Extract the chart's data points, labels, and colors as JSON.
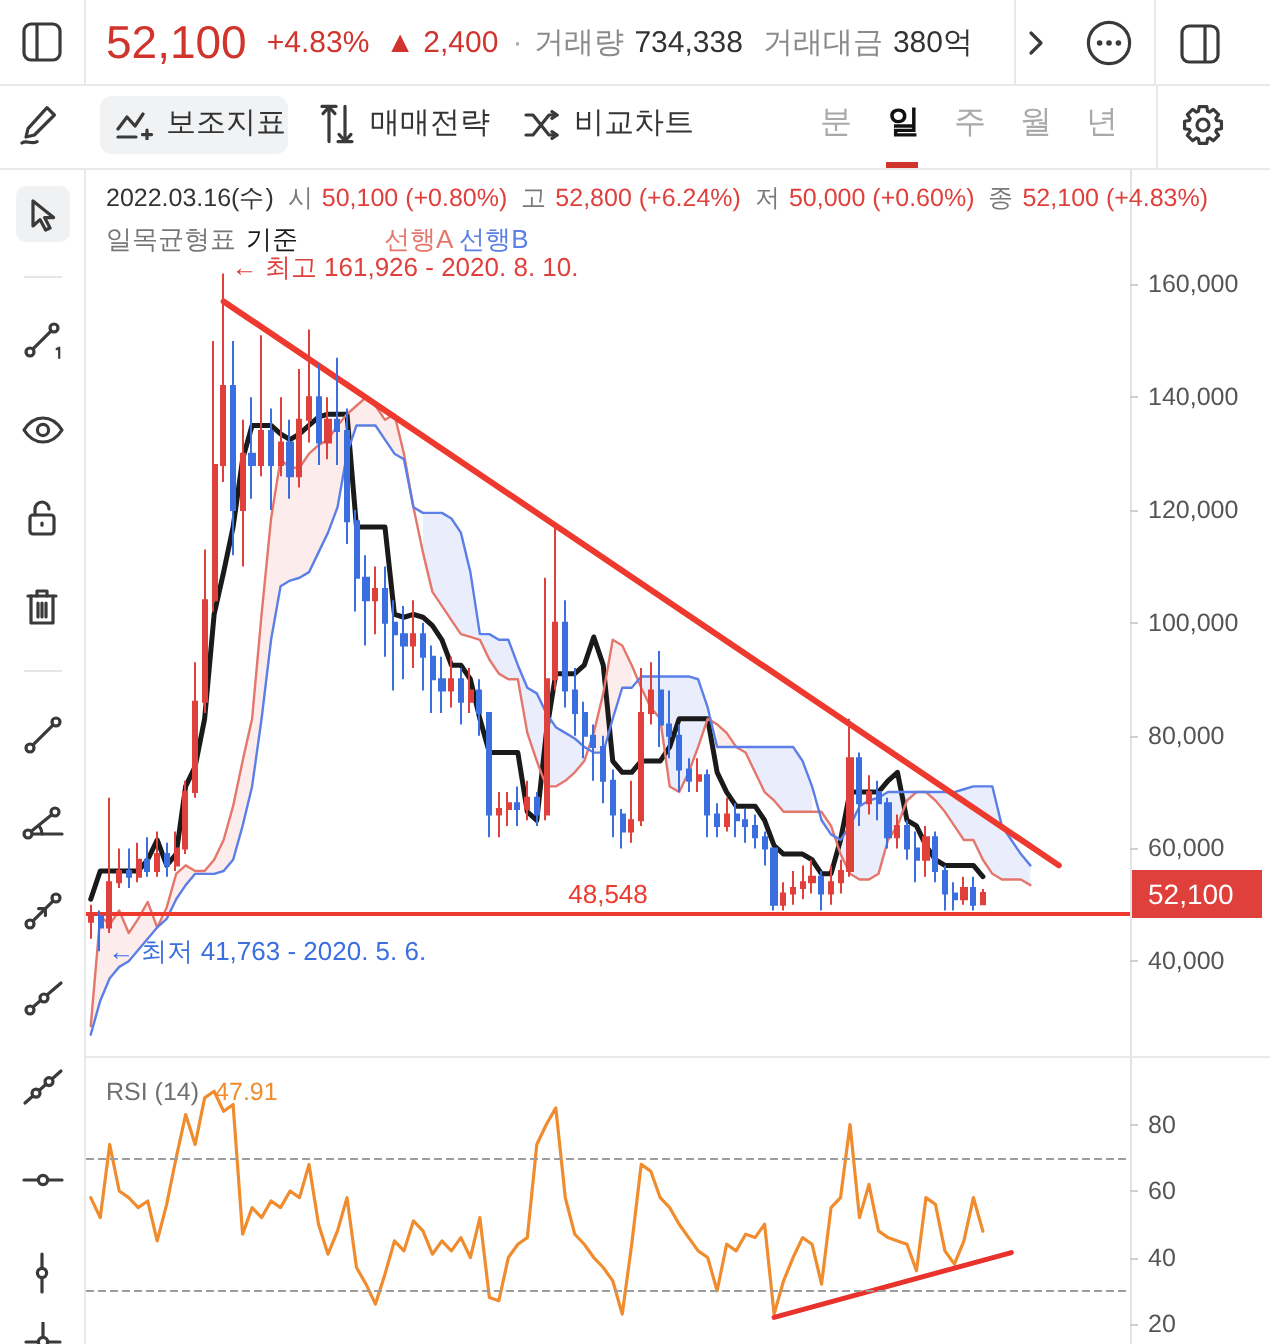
{
  "chart_data": [
    {
      "type": "other",
      "annotations": [
        "52,100",
        "+4.83%",
        "▲ 2,400",
        "·",
        "거래량",
        "734,338",
        "거래대금",
        "380억",
        "보조지표",
        "매매전략",
        "비교차트",
        "분",
        "일",
        "주",
        "월",
        "년"
      ]
    },
    {
      "type": "candlestick",
      "legend": "top left",
      "legend_title": "일목균형표",
      "annotations": [
        "2022.03.16(수)",
        "시",
        "50,100 (+0.80%)",
        "고",
        "52,800 (+6.24%)",
        "저",
        "50,000 (+0.60%)",
        "종",
        "52,100 (+4.83%)",
        "← 최고 161,926 - 2020. 8. 10.",
        "← 최저 41,763 - 2020. 5. 6.",
        "52,100"
      ],
      "categories": [
        null,
        null,
        null,
        null,
        null,
        null,
        null,
        null,
        null,
        null,
        null,
        null,
        null,
        null,
        null,
        null,
        null,
        null,
        null,
        null,
        null,
        null,
        null,
        null,
        null,
        null,
        null,
        null,
        null,
        null,
        null,
        null,
        null,
        null,
        null,
        null,
        null,
        null,
        null,
        null,
        null,
        null,
        null,
        null,
        null,
        null,
        null,
        null,
        null,
        null,
        null,
        null,
        null,
        null,
        null,
        null,
        null,
        null,
        null,
        null,
        null,
        null,
        null,
        null,
        null,
        null,
        null,
        null,
        null,
        null,
        null,
        null,
        null,
        null,
        null,
        null,
        null,
        null,
        null,
        null,
        null,
        null,
        null,
        null,
        null,
        null,
        null,
        null,
        null,
        null,
        null,
        null,
        null,
        null,
        null,
        null,
        null,
        null,
        null,
        null,
        null,
        null,
        null,
        null,
        null,
        null,
        null,
        null,
        null,
        null
      ],
      "ohlc": [
        [
          47000,
          50000,
          44000,
          48000
        ],
        [
          48000,
          49000,
          41763,
          46000
        ],
        [
          46000,
          69000,
          45000,
          54000
        ],
        [
          54000,
          60000,
          53000,
          56000
        ],
        [
          56000,
          60000,
          53000,
          55000
        ],
        [
          55000,
          61000,
          54000,
          58000
        ],
        [
          58000,
          62000,
          55000,
          56000
        ],
        [
          56000,
          63000,
          55000,
          59000
        ],
        [
          59000,
          61000,
          55000,
          57000
        ],
        [
          57000,
          63000,
          56000,
          60000
        ],
        [
          60000,
          72000,
          59000,
          70000
        ],
        [
          70000,
          93000,
          69000,
          86000
        ],
        [
          86000,
          113000,
          84000,
          104000
        ],
        [
          104000,
          150000,
          102000,
          128000
        ],
        [
          128000,
          161926,
          125000,
          142000
        ],
        [
          142000,
          150000,
          112000,
          120000
        ],
        [
          120000,
          136000,
          110000,
          130000
        ],
        [
          130000,
          140000,
          122000,
          128000
        ],
        [
          128000,
          151000,
          126000,
          134000
        ],
        [
          134000,
          138000,
          120000,
          128000
        ],
        [
          128000,
          140000,
          126000,
          132000
        ],
        [
          132000,
          136000,
          122000,
          126000
        ],
        [
          126000,
          145000,
          124000,
          136000
        ],
        [
          136000,
          152000,
          132000,
          140000
        ],
        [
          140000,
          146000,
          128000,
          132000
        ],
        [
          132000,
          140000,
          129000,
          136000
        ],
        [
          136000,
          147000,
          128000,
          134000
        ],
        [
          134000,
          138000,
          114000,
          118000
        ],
        [
          118000,
          120000,
          102000,
          108000
        ],
        [
          108000,
          112000,
          96000,
          104000
        ],
        [
          104000,
          110000,
          98000,
          106000
        ],
        [
          106000,
          110000,
          94000,
          100000
        ],
        [
          100000,
          104000,
          88000,
          98000
        ],
        [
          98000,
          103000,
          90000,
          96000
        ],
        [
          96000,
          104000,
          92000,
          98000
        ],
        [
          98000,
          100000,
          88000,
          94000
        ],
        [
          94000,
          96000,
          84000,
          90000
        ],
        [
          90000,
          94000,
          84000,
          88000
        ],
        [
          88000,
          94000,
          85000,
          90000
        ],
        [
          90000,
          92000,
          82000,
          86000
        ],
        [
          86000,
          92000,
          84000,
          88000
        ],
        [
          88000,
          90000,
          80000,
          84000
        ],
        [
          84000,
          84000,
          62000,
          66000
        ],
        [
          66000,
          70000,
          62000,
          67000
        ],
        [
          67000,
          70000,
          64000,
          68000
        ],
        [
          68000,
          71000,
          64000,
          67000
        ],
        [
          67000,
          72000,
          65000,
          69000
        ],
        [
          69000,
          70000,
          64000,
          66000
        ],
        [
          66000,
          108000,
          65000,
          90000
        ],
        [
          90000,
          117000,
          88000,
          100000
        ],
        [
          100000,
          104000,
          85000,
          88000
        ],
        [
          88000,
          92000,
          80000,
          84000
        ],
        [
          84000,
          86000,
          76000,
          80000
        ],
        [
          80000,
          82000,
          72000,
          78000
        ],
        [
          78000,
          80000,
          68000,
          72000
        ],
        [
          72000,
          74000,
          62000,
          66000
        ],
        [
          66000,
          67000,
          60000,
          63000
        ],
        [
          63000,
          72000,
          61000,
          65000
        ],
        [
          65000,
          92000,
          64000,
          84000
        ],
        [
          84000,
          93000,
          82000,
          88000
        ],
        [
          88000,
          95000,
          78000,
          82000
        ],
        [
          82000,
          88000,
          76000,
          80000
        ],
        [
          80000,
          82000,
          70000,
          74000
        ],
        [
          74000,
          76000,
          70000,
          72000
        ],
        [
          72000,
          76000,
          70000,
          73000
        ],
        [
          73000,
          74000,
          62000,
          66000
        ],
        [
          66000,
          68000,
          62000,
          64000
        ],
        [
          64000,
          69000,
          63000,
          66000
        ],
        [
          66000,
          68000,
          62000,
          65000
        ],
        [
          65000,
          67000,
          61000,
          64000
        ],
        [
          64000,
          66000,
          60000,
          62000
        ],
        [
          62000,
          63000,
          57000,
          60000
        ],
        [
          60000,
          60000,
          49000,
          50000
        ],
        [
          50000,
          54000,
          49000,
          52000
        ],
        [
          52000,
          56000,
          50000,
          53000
        ],
        [
          53000,
          57000,
          51000,
          54000
        ],
        [
          54000,
          58000,
          52000,
          55000
        ],
        [
          55000,
          56000,
          49000,
          52000
        ],
        [
          52000,
          57000,
          50000,
          54000
        ],
        [
          54000,
          58000,
          52000,
          56000
        ],
        [
          56000,
          83000,
          55000,
          76000
        ],
        [
          76000,
          77000,
          64000,
          68000
        ],
        [
          68000,
          73000,
          66000,
          70000
        ],
        [
          70000,
          72000,
          65000,
          68000
        ],
        [
          68000,
          69000,
          60000,
          62000
        ],
        [
          62000,
          66000,
          60000,
          64000
        ],
        [
          64000,
          65000,
          58000,
          60000
        ],
        [
          60000,
          63000,
          54000,
          58000
        ],
        [
          58000,
          64000,
          55000,
          62000
        ],
        [
          62000,
          63000,
          54000,
          56000
        ],
        [
          56000,
          57000,
          49000,
          52000
        ],
        [
          52000,
          54000,
          49000,
          51000
        ],
        [
          51000,
          55000,
          50000,
          53000
        ],
        [
          53000,
          55000,
          49000,
          50000
        ],
        [
          50100,
          52800,
          50000,
          52100
        ],
        null,
        null,
        null,
        null,
        null,
        null,
        null,
        null,
        null,
        null,
        null,
        null,
        null,
        null,
        null
      ],
      "colors": [
        "#e0403c",
        "#3b6fe0",
        "#e0403c",
        "#e0403c",
        "#3b6fe0",
        "#e0403c",
        "#3b6fe0",
        "#e0403c",
        "#3b6fe0",
        "#e0403c",
        "#e0403c",
        "#e0403c",
        "#e0403c",
        "#e0403c",
        "#e0403c",
        "#3b6fe0",
        "#e0403c",
        "#3b6fe0",
        "#e0403c",
        "#3b6fe0",
        "#e0403c",
        "#3b6fe0",
        "#e0403c",
        "#e0403c",
        "#3b6fe0",
        "#e0403c",
        "#3b6fe0",
        "#3b6fe0",
        "#3b6fe0",
        "#3b6fe0",
        "#e0403c",
        "#3b6fe0",
        "#3b6fe0",
        "#3b6fe0",
        "#e0403c",
        "#3b6fe0",
        "#3b6fe0",
        "#3b6fe0",
        "#e0403c",
        "#3b6fe0",
        "#e0403c",
        "#3b6fe0",
        "#3b6fe0",
        "#e0403c",
        "#e0403c",
        "#3b6fe0",
        "#e0403c",
        "#3b6fe0",
        "#e0403c",
        "#e0403c",
        "#3b6fe0",
        "#3b6fe0",
        "#3b6fe0",
        "#3b6fe0",
        "#3b6fe0",
        "#3b6fe0",
        "#3b6fe0",
        "#e0403c",
        "#e0403c",
        "#e0403c",
        "#3b6fe0",
        "#3b6fe0",
        "#3b6fe0",
        "#3b6fe0",
        "#e0403c",
        "#3b6fe0",
        "#3b6fe0",
        "#e0403c",
        "#3b6fe0",
        "#3b6fe0",
        "#3b6fe0",
        "#3b6fe0",
        "#3b6fe0",
        "#e0403c",
        "#e0403c",
        "#e0403c",
        "#e0403c",
        "#3b6fe0",
        "#e0403c",
        "#e0403c",
        "#e0403c",
        "#3b6fe0",
        "#e0403c",
        "#3b6fe0",
        "#3b6fe0",
        "#e0403c",
        "#3b6fe0",
        "#3b6fe0",
        "#e0403c",
        "#3b6fe0",
        "#3b6fe0",
        "#3b6fe0",
        "#e0403c",
        "#3b6fe0",
        "#e0403c",
        null,
        null,
        null,
        null,
        null,
        null,
        null,
        null,
        null,
        null,
        null,
        null,
        null,
        null,
        null
      ],
      "series": [
        {
          "name": "기준",
          "type": "line",
          "color": "#1a1a1a",
          "values": [
            51000,
            56000,
            56000,
            56000,
            56000,
            56000,
            58000,
            61500,
            57000,
            59000,
            71000,
            74500,
            83000,
            101500,
            109000,
            117000,
            129000,
            135000,
            135000,
            135000,
            133500,
            132500,
            133500,
            135000,
            136500,
            137000,
            137000,
            137000,
            117000,
            117000,
            117000,
            117000,
            101500,
            101000,
            101500,
            101000,
            99500,
            97000,
            92500,
            92500,
            90000,
            83000,
            77000,
            77000,
            77000,
            77000,
            66500,
            65000,
            80500,
            91000,
            91000,
            91000,
            92500,
            97500,
            92500,
            75500,
            73500,
            73500,
            75500,
            75500,
            75500,
            78000,
            83000,
            83000,
            83000,
            83000,
            73500,
            70000,
            67500,
            67500,
            67500,
            65000,
            60500,
            59000,
            59000,
            59000,
            58000,
            55500,
            55500,
            61500,
            70000,
            70000,
            70000,
            70000,
            72000,
            73500,
            65000,
            64000,
            60500,
            58000,
            57000,
            57000,
            57000,
            57000,
            55000,
            null,
            null,
            null,
            null,
            null,
            null,
            null,
            null,
            null,
            null,
            null,
            null,
            null,
            null,
            null
          ]
        },
        {
          "name": "선행A",
          "type": "line",
          "color": "#e5766b",
          "values": [
            28500,
            48000,
            46500,
            49000,
            45000,
            47500,
            50500,
            46000,
            49500,
            55500,
            57000,
            56000,
            56000,
            58000,
            61500,
            67500,
            75500,
            83000,
            101500,
            118500,
            129000,
            127500,
            127500,
            130000,
            131500,
            132500,
            135000,
            137000,
            138500,
            140000,
            138500,
            136000,
            137000,
            130000,
            120500,
            112500,
            105500,
            103000,
            100500,
            98000,
            97500,
            97000,
            93500,
            91000,
            90000,
            90000,
            80500,
            75500,
            71000,
            71000,
            72000,
            73500,
            75500,
            80500,
            87500,
            97000,
            96000,
            92500,
            88500,
            85000,
            83000,
            71000,
            70000,
            73500,
            78000,
            83000,
            82000,
            80500,
            78000,
            77000,
            73500,
            70000,
            68500,
            66500,
            66500,
            66500,
            66500,
            66500,
            64000,
            59000,
            55500,
            54500,
            54500,
            55500,
            61500,
            64000,
            68500,
            70000,
            70000,
            68500,
            66500,
            64000,
            61500,
            61500,
            58000,
            55500,
            54500,
            54500,
            54500,
            53500,
            null,
            null,
            null,
            null,
            null,
            null,
            null,
            null,
            null,
            null
          ],
          "upper": [
            28500,
            48000,
            46500,
            49000,
            45000,
            47500,
            50500,
            46000,
            49500,
            55500,
            57000,
            56000,
            56000,
            58000,
            61500,
            67500,
            75500,
            83000,
            101500,
            118500,
            129000,
            127500,
            127500,
            130000,
            131500,
            132500,
            135000,
            137000,
            138500,
            140000,
            138500,
            136000,
            137000,
            130000,
            120500,
            null,
            null,
            null,
            null,
            null,
            null,
            null,
            null,
            null,
            null,
            null,
            null,
            null,
            null,
            null,
            null,
            null,
            null,
            80500,
            87500,
            97000,
            96000,
            92500,
            null,
            null,
            null,
            null,
            null,
            null,
            null,
            null,
            82000,
            80500,
            78000,
            null,
            null,
            null,
            null,
            null,
            null,
            null,
            null,
            66500,
            64000,
            null,
            null,
            null,
            null,
            null,
            null,
            null,
            null,
            null,
            null,
            null,
            null,
            null,
            null,
            null,
            null,
            null,
            null,
            null,
            null,
            null,
            null,
            null,
            null,
            null,
            null,
            null,
            null,
            null,
            null,
            null
          ],
          "lower": [
            27000,
            33000,
            37000,
            39000,
            40000,
            42000,
            44000,
            46000,
            47500,
            51000,
            53500,
            55500,
            55500,
            55500,
            56000,
            58000,
            64000,
            71000,
            83000,
            97000,
            106500,
            107500,
            108000,
            109000,
            112500,
            116000,
            120500,
            130000,
            135000,
            135000,
            135000,
            132500,
            130000,
            129000,
            120500,
            null,
            null,
            null,
            null,
            null,
            null,
            null,
            null,
            null,
            null,
            null,
            null,
            null,
            null,
            null,
            null,
            null,
            null,
            77000,
            77000,
            83000,
            88500,
            88500,
            null,
            null,
            null,
            null,
            null,
            null,
            null,
            null,
            78000,
            78000,
            78000,
            null,
            null,
            null,
            null,
            null,
            null,
            null,
            null,
            65000,
            62500,
            null,
            null,
            null,
            null,
            null,
            null,
            null,
            null,
            null,
            null,
            null,
            null,
            null,
            null,
            null,
            null,
            null,
            null,
            null,
            null,
            null,
            null,
            null,
            null,
            null,
            null,
            null,
            null,
            null,
            null,
            null
          ]
        },
        {
          "name": "선행B",
          "type": "line",
          "color": "#5b7fe6",
          "values": [
            27000,
            33000,
            37000,
            39000,
            40000,
            42000,
            44000,
            46000,
            47500,
            51000,
            53500,
            55500,
            55500,
            55500,
            56000,
            58000,
            64000,
            71000,
            83000,
            97000,
            106500,
            107500,
            108000,
            109000,
            112500,
            116000,
            120500,
            130000,
            135000,
            135000,
            135000,
            132500,
            130000,
            129000,
            120500,
            119500,
            119500,
            119500,
            118500,
            116000,
            109000,
            98000,
            98000,
            97000,
            97000,
            92500,
            88500,
            87500,
            84000,
            81500,
            80500,
            79500,
            78000,
            77000,
            77000,
            83000,
            88500,
            88500,
            90500,
            90500,
            90500,
            90500,
            90500,
            90500,
            90000,
            85000,
            78000,
            78000,
            78000,
            78000,
            78000,
            78000,
            78000,
            78000,
            78000,
            75500,
            71000,
            65000,
            62500,
            61500,
            64000,
            67500,
            68500,
            69000,
            70000,
            70000,
            70000,
            70000,
            70000,
            70000,
            70000,
            70000,
            70500,
            71000,
            71000,
            71000,
            64000,
            61500,
            59000,
            57000,
            null,
            null,
            null,
            null,
            null,
            null,
            null,
            null,
            null,
            null
          ],
          "upper": [
            null,
            null,
            null,
            null,
            null,
            null,
            null,
            null,
            null,
            null,
            null,
            null,
            null,
            null,
            null,
            null,
            null,
            null,
            null,
            null,
            null,
            null,
            null,
            null,
            null,
            null,
            null,
            null,
            null,
            null,
            null,
            null,
            null,
            null,
            null,
            119500,
            119500,
            119500,
            118500,
            116000,
            109000,
            98000,
            98000,
            97000,
            97000,
            92500,
            88500,
            87500,
            84000,
            81500,
            80500,
            79500,
            78000,
            null,
            null,
            null,
            null,
            null,
            90500,
            90500,
            90500,
            90500,
            90500,
            90500,
            90000,
            85000,
            null,
            null,
            null,
            78000,
            78000,
            78000,
            78000,
            78000,
            78000,
            75500,
            71000,
            null,
            null,
            61500,
            64000,
            67500,
            68500,
            69000,
            70000,
            70000,
            70000,
            70000,
            70000,
            70000,
            70000,
            70000,
            70500,
            71000,
            71000,
            71000,
            64000,
            61500,
            59000,
            57000,
            null,
            null,
            null,
            null,
            null,
            null,
            null,
            null,
            null,
            null
          ],
          "lower": [
            null,
            null,
            null,
            null,
            null,
            null,
            null,
            null,
            null,
            null,
            null,
            null,
            null,
            null,
            null,
            null,
            null,
            null,
            null,
            null,
            null,
            null,
            null,
            null,
            null,
            null,
            null,
            null,
            null,
            null,
            null,
            null,
            null,
            null,
            null,
            112500,
            105500,
            103000,
            100500,
            98000,
            97500,
            97000,
            93500,
            91000,
            90000,
            90000,
            80500,
            75500,
            71000,
            71000,
            72000,
            73500,
            75500,
            null,
            null,
            null,
            null,
            null,
            88500,
            85000,
            83000,
            71000,
            70000,
            73500,
            78000,
            83000,
            null,
            null,
            null,
            77000,
            73500,
            70000,
            68500,
            66500,
            66500,
            66500,
            66500,
            null,
            null,
            59000,
            55500,
            54500,
            54500,
            55500,
            61500,
            64000,
            68500,
            70000,
            70000,
            68500,
            66500,
            64000,
            61500,
            61500,
            58000,
            55500,
            54500,
            54500,
            54500,
            53500,
            null,
            null,
            null,
            null,
            null,
            null,
            null,
            null,
            null,
            null
          ]
        },
        {
          "type": "line",
          "color": "#ee3a2e",
          "values": [
            null,
            null,
            null,
            null,
            null,
            null,
            null,
            null,
            null,
            null,
            null,
            null,
            null,
            null,
            157000,
            null,
            null,
            null,
            null,
            null,
            null,
            null,
            null,
            null,
            null,
            null,
            null,
            null,
            null,
            null,
            null,
            null,
            null,
            null,
            null,
            null,
            null,
            null,
            null,
            null,
            null,
            null,
            null,
            null,
            null,
            null,
            null,
            null,
            null,
            null,
            null,
            null,
            null,
            null,
            null,
            null,
            null,
            null,
            null,
            null,
            null,
            null,
            null,
            null,
            null,
            null,
            null,
            null,
            null,
            null,
            null,
            null,
            null,
            null,
            null,
            null,
            null,
            null,
            null,
            null,
            null,
            null,
            null,
            null,
            null,
            null,
            null,
            null,
            null,
            null,
            null,
            null,
            null,
            null,
            null,
            null,
            null,
            null,
            null,
            null,
            null,
            null,
            57000,
            null,
            null,
            null,
            null,
            null,
            null,
            null
          ]
        }
      ],
      "ylim": [
        23200,
        180300
      ],
      "yticks": [
        {
          "value": 40000,
          "label": "40,000"
        },
        {
          "value": 60000,
          "label": "60,000"
        },
        {
          "value": 80000,
          "label": "80,000"
        },
        {
          "value": 100000,
          "label": "100,000"
        },
        {
          "value": 120000,
          "label": "120,000"
        },
        {
          "value": 140000,
          "label": "140,000"
        },
        {
          "value": 160000,
          "label": "160,000"
        }
      ],
      "ref_lines": [
        {
          "axis": "y",
          "value": 48548,
          "label": "48,548",
          "color": "#ee3a2e"
        }
      ],
      "tick_labels": "y"
    },
    {
      "type": "line",
      "title": "RSI (14)",
      "annotations": [
        "47.91"
      ],
      "categories": [
        null,
        null,
        null,
        null,
        null,
        null,
        null,
        null,
        null,
        null,
        null,
        null,
        null,
        null,
        null,
        null,
        null,
        null,
        null,
        null,
        null,
        null,
        null,
        null,
        null,
        null,
        null,
        null,
        null,
        null,
        null,
        null,
        null,
        null,
        null,
        null,
        null,
        null,
        null,
        null,
        null,
        null,
        null,
        null,
        null,
        null,
        null,
        null,
        null,
        null,
        null,
        null,
        null,
        null,
        null,
        null,
        null,
        null,
        null,
        null,
        null,
        null,
        null,
        null,
        null,
        null,
        null,
        null,
        null,
        null,
        null,
        null,
        null,
        null,
        null,
        null,
        null,
        null,
        null,
        null,
        null,
        null,
        null,
        null,
        null,
        null,
        null,
        null,
        null,
        null,
        null,
        null,
        null,
        null,
        null,
        null,
        null,
        null,
        null,
        null,
        null,
        null,
        null,
        null,
        null,
        null,
        null,
        null,
        null,
        null
      ],
      "series": [
        {
          "color": "#f08c2e",
          "values": [
            58,
            52,
            74,
            60,
            58,
            55,
            57,
            45,
            56,
            70,
            83,
            74,
            88,
            90,
            84,
            86,
            47,
            55,
            52,
            57,
            55,
            60,
            58,
            68,
            50,
            41,
            48,
            58,
            37,
            32,
            26,
            35,
            45,
            42,
            51,
            48,
            41,
            45,
            42,
            46,
            40,
            52,
            28,
            27,
            40,
            44,
            46,
            74,
            80,
            85,
            58,
            47,
            44,
            40,
            37,
            33,
            23,
            44,
            68,
            66,
            58,
            55,
            50,
            46,
            42,
            40,
            30,
            44,
            42,
            47,
            46,
            50,
            23,
            33,
            40,
            46,
            44,
            32,
            55,
            58,
            80,
            52,
            62,
            48,
            46,
            45,
            44,
            36,
            58,
            56,
            42,
            38,
            45,
            58,
            47.91,
            null,
            null,
            null,
            null,
            null,
            null,
            null,
            null,
            null,
            null,
            null,
            null,
            null,
            null,
            null
          ]
        },
        {
          "type": "line",
          "color": "#e8322b",
          "values": [
            null,
            null,
            null,
            null,
            null,
            null,
            null,
            null,
            null,
            null,
            null,
            null,
            null,
            null,
            null,
            null,
            null,
            null,
            null,
            null,
            null,
            null,
            null,
            null,
            null,
            null,
            null,
            null,
            null,
            null,
            null,
            null,
            null,
            null,
            null,
            null,
            null,
            null,
            null,
            null,
            null,
            null,
            null,
            null,
            null,
            null,
            null,
            null,
            null,
            null,
            null,
            null,
            null,
            null,
            null,
            null,
            null,
            null,
            null,
            null,
            null,
            null,
            null,
            null,
            null,
            null,
            null,
            null,
            null,
            null,
            null,
            null,
            22,
            null,
            null,
            null,
            null,
            null,
            null,
            null,
            null,
            null,
            null,
            null,
            null,
            null,
            null,
            null,
            null,
            null,
            null,
            null,
            null,
            null,
            null,
            null,
            null,
            41.5,
            null,
            null,
            null,
            null,
            null,
            null,
            null,
            null,
            null,
            null,
            null,
            null
          ]
        }
      ],
      "ylim": [
        14,
        100
      ],
      "yticks": [
        20,
        40,
        60,
        80
      ],
      "ref_lines": [
        {
          "axis": "y",
          "value": 70,
          "color": "#9e9e9e",
          "line_style": "dashed"
        },
        {
          "axis": "y",
          "value": 30,
          "color": "#9e9e9e",
          "line_style": "dashed"
        }
      ],
      "tick_labels": "y"
    }
  ]
}
